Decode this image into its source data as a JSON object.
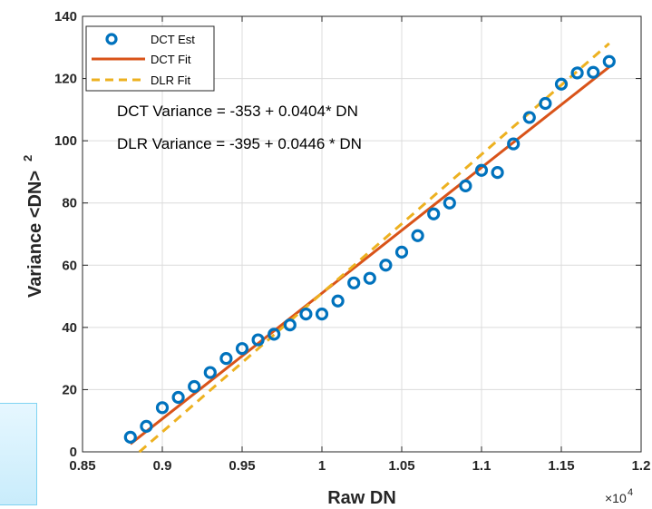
{
  "chart_data": {
    "type": "scatter",
    "xlabel": "Raw DN",
    "ylabel": "Variance <DN>",
    "ylabel_superscript": "2",
    "x_exponent_label": "×10",
    "x_exponent_power": "4",
    "xlim": [
      8500,
      12000
    ],
    "ylim": [
      0,
      140
    ],
    "xticks": [
      8500,
      9000,
      9500,
      10000,
      10500,
      11000,
      11500,
      12000
    ],
    "xtick_labels": [
      "0.85",
      "0.9",
      "0.95",
      "1",
      "1.05",
      "1.1",
      "1.15",
      "1.2"
    ],
    "yticks": [
      0,
      20,
      40,
      60,
      80,
      100,
      120,
      140
    ],
    "ytick_labels": [
      "0",
      "20",
      "40",
      "60",
      "80",
      "100",
      "120",
      "140"
    ],
    "grid": true,
    "legend_position": "top-left",
    "series": [
      {
        "name": "DCT Est",
        "kind": "markers",
        "color": "#0072bd",
        "x": [
          8800,
          8900,
          9000,
          9100,
          9200,
          9300,
          9400,
          9500,
          9600,
          9700,
          9800,
          9900,
          10000,
          10100,
          10200,
          10300,
          10400,
          10500,
          10600,
          10700,
          10800,
          10900,
          11000,
          11100,
          11200,
          11300,
          11400,
          11500,
          11600,
          11700,
          11800
        ],
        "y": [
          4.7,
          8.2,
          14.2,
          17.5,
          21,
          25.5,
          30,
          33.2,
          36,
          37.8,
          40.8,
          44.3,
          44.3,
          48.5,
          54.3,
          55.8,
          60,
          64.2,
          69.5,
          76.5,
          80,
          85.5,
          90.5,
          89.8,
          99,
          107.5,
          112,
          118.2,
          121.8,
          122,
          125.5
        ]
      },
      {
        "name": "DCT Fit",
        "kind": "line",
        "color": "#d95319",
        "intercept": -353,
        "slope": 0.0404,
        "x_range": [
          8800,
          11800
        ]
      },
      {
        "name": "DLR Fit",
        "kind": "dashed-line",
        "color": "#edb120",
        "intercept": -395,
        "slope": 0.0446,
        "x_range": [
          8856,
          11800
        ]
      }
    ],
    "annotations": [
      "DCT Variance = -353 + 0.0404* DN",
      "DLR Variance = -395 + 0.0446 * DN"
    ]
  }
}
